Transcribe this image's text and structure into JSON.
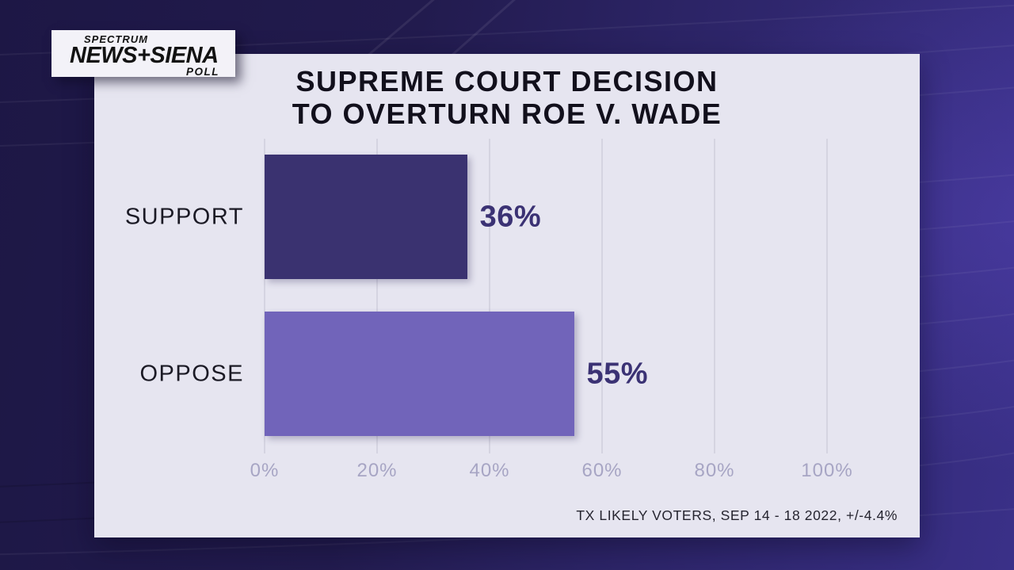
{
  "logo": {
    "brand_top": "SPECTRUM",
    "brand_main": "NEWS+SIENA",
    "brand_sub": "POLL"
  },
  "chart_data": {
    "type": "bar",
    "orientation": "horizontal",
    "title": "SUPREME COURT DECISION TO OVERTURN ROE V. WADE",
    "title_lines": [
      "SUPREME COURT DECISION",
      "TO OVERTURN ROE V. WADE"
    ],
    "categories": [
      "SUPPORT",
      "OPPOSE"
    ],
    "values": [
      36,
      55
    ],
    "value_labels": [
      "36%",
      "55%"
    ],
    "bar_colors": [
      "#3a3270",
      "#7164ba"
    ],
    "xlabel": "",
    "ylabel": "",
    "xlim": [
      0,
      100
    ],
    "x_ticks": [
      0,
      20,
      40,
      60,
      80,
      100
    ],
    "x_tick_labels": [
      "0%",
      "20%",
      "40%",
      "60%",
      "80%",
      "100%"
    ],
    "grid": true,
    "legend": false,
    "source_note": "TX LIKELY VOTERS, SEP 14 - 18 2022, +/-4.4%"
  },
  "colors": {
    "card_background": "#e6e5f0",
    "background_dark": "#1d1745",
    "background_purple": "#3a3088",
    "bar_support": "#3a3270",
    "bar_oppose": "#7164ba",
    "value_text": "#3b3274",
    "axis_text": "#a7a5c4",
    "gridline": "#d5d4e1",
    "title_text": "#12101c"
  }
}
